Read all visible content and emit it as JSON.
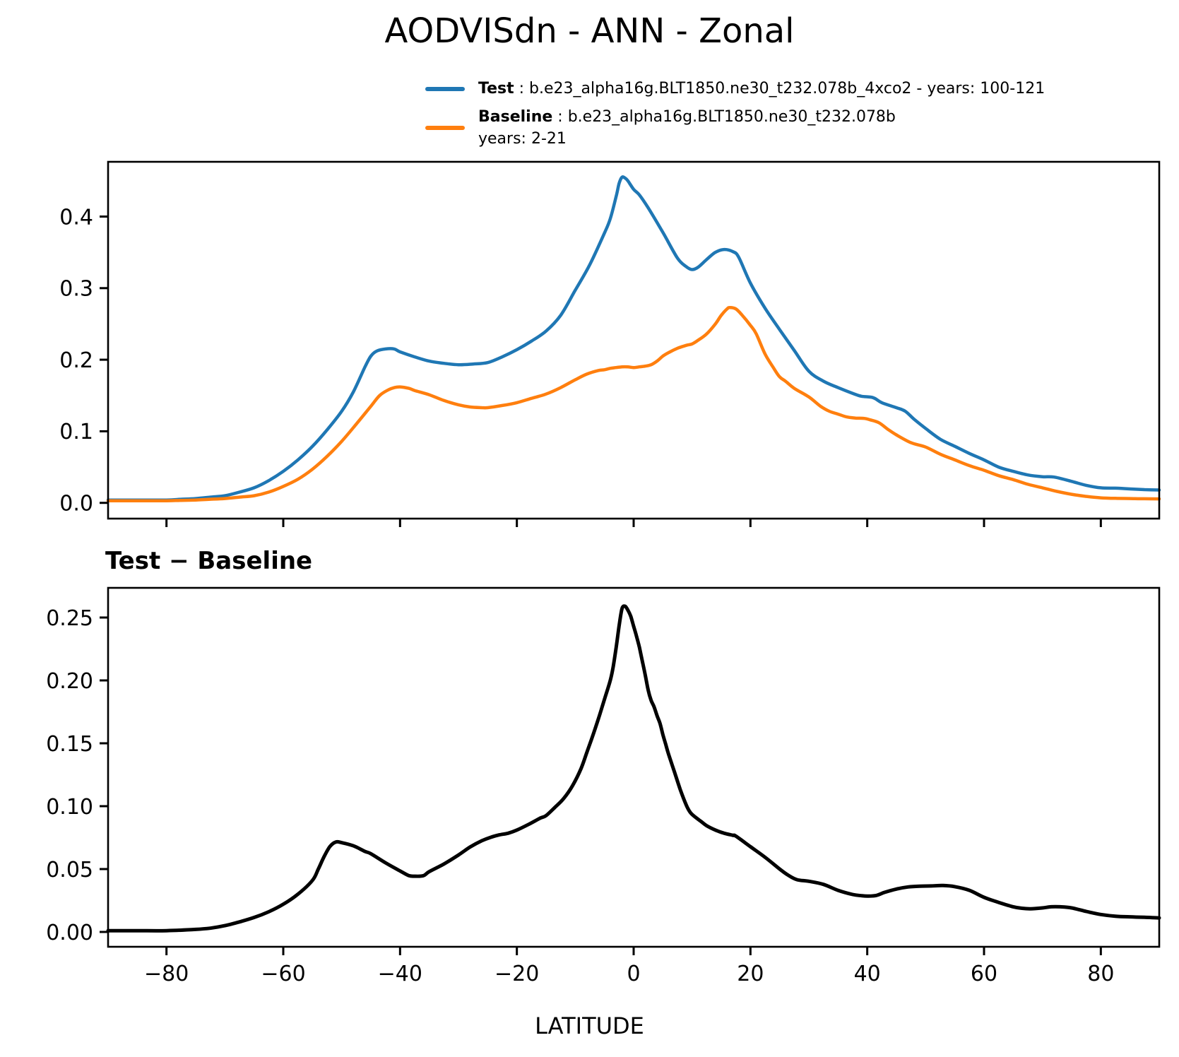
{
  "title": "AODVISdn - ANN - Zonal",
  "xlabel": "LATITUDE",
  "colors": {
    "test": "#1f77b4",
    "baseline": "#ff7f0e",
    "diff": "#000000",
    "axis": "#000000"
  },
  "legend": {
    "entries": [
      {
        "label_bold": "Test",
        "label_rest": " : b.e23_alpha16g.BLT1850.ne30_t232.078b_4xco2 - years: 100-121",
        "color": "#1f77b4"
      },
      {
        "label_bold": "Baseline",
        "label_rest": " : b.e23_alpha16g.BLT1850.ne30_t232.078b",
        "label_line2": "years: 2-21",
        "color": "#ff7f0e"
      }
    ]
  },
  "chart_data": [
    {
      "type": "line",
      "title": "",
      "xlabel": "",
      "ylabel": "",
      "grid": false,
      "legend_position": "above-right, no frame",
      "xlim": [
        -90,
        90
      ],
      "ylim": [
        -0.022,
        0.4765
      ],
      "xticks": [
        -80,
        -60,
        -40,
        -20,
        0,
        20,
        40,
        60,
        80
      ],
      "xtick_labels": [],
      "yticks": [
        0.0,
        0.1,
        0.2,
        0.3,
        0.4
      ],
      "ytick_labels": [
        "0.0",
        "0.1",
        "0.2",
        "0.3",
        "0.4"
      ],
      "series": [
        {
          "name": "Test",
          "color": "#1f77b4",
          "x": [
            -90,
            -85,
            -80,
            -77.5,
            -75,
            -72.5,
            -70,
            -67.5,
            -65,
            -62.5,
            -60,
            -57.5,
            -55,
            -52.5,
            -50,
            -48,
            -46,
            -45,
            -44,
            -42.5,
            -41,
            -40,
            -37.5,
            -35,
            -32.5,
            -30,
            -27.5,
            -25,
            -22.5,
            -20,
            -17.5,
            -15,
            -12.5,
            -10,
            -7.5,
            -5,
            -4,
            -3,
            -2.5,
            -2,
            -1.5,
            -1,
            0,
            1,
            2.5,
            5,
            7.5,
            9,
            10,
            11,
            12.5,
            14,
            15.5,
            17,
            18,
            20,
            22.5,
            25,
            27.5,
            30,
            32.5,
            35,
            37.5,
            39,
            41,
            42.5,
            45,
            46.5,
            48,
            50,
            52.5,
            55,
            57.5,
            60,
            62.5,
            65,
            67.5,
            70,
            72,
            75,
            77.5,
            80,
            82.5,
            85,
            87.5,
            90
          ],
          "values": [
            0.004,
            0.004,
            0.004,
            0.005,
            0.006,
            0.008,
            0.01,
            0.015,
            0.021,
            0.031,
            0.044,
            0.06,
            0.079,
            0.102,
            0.128,
            0.155,
            0.19,
            0.205,
            0.212,
            0.215,
            0.215,
            0.211,
            0.204,
            0.198,
            0.195,
            0.193,
            0.194,
            0.196,
            0.204,
            0.214,
            0.226,
            0.24,
            0.262,
            0.297,
            0.333,
            0.377,
            0.397,
            0.428,
            0.446,
            0.455,
            0.454,
            0.45,
            0.438,
            0.43,
            0.412,
            0.378,
            0.342,
            0.33,
            0.326,
            0.329,
            0.34,
            0.35,
            0.354,
            0.351,
            0.343,
            0.307,
            0.272,
            0.242,
            0.213,
            0.184,
            0.17,
            0.161,
            0.153,
            0.149,
            0.147,
            0.14,
            0.133,
            0.128,
            0.117,
            0.104,
            0.089,
            0.079,
            0.069,
            0.06,
            0.05,
            0.044,
            0.039,
            0.0365,
            0.036,
            0.03,
            0.0245,
            0.021,
            0.0205,
            0.0195,
            0.0185,
            0.018
          ]
        },
        {
          "name": "Baseline",
          "color": "#ff7f0e",
          "x": [
            -90,
            -85,
            -80,
            -77.5,
            -75,
            -72.5,
            -70,
            -67.5,
            -65,
            -62.5,
            -60,
            -57.5,
            -55,
            -52.5,
            -50,
            -47.5,
            -45,
            -43.5,
            -42,
            -41,
            -40,
            -38.5,
            -37.5,
            -35,
            -32.5,
            -30,
            -28,
            -26,
            -25,
            -22.5,
            -20,
            -17.5,
            -15,
            -12.5,
            -10,
            -8,
            -6,
            -5,
            -4,
            -3,
            -2,
            -1,
            0,
            1,
            2,
            3,
            4,
            5,
            6,
            7.5,
            9,
            10,
            11,
            12.5,
            14,
            15,
            16,
            16.5,
            17.5,
            18.5,
            20,
            21,
            22.5,
            24,
            25,
            26,
            27.5,
            30,
            32,
            33.5,
            35,
            36.5,
            38,
            39.5,
            40.5,
            42,
            43.5,
            45,
            47.5,
            50,
            52.5,
            55,
            57.5,
            60,
            62.5,
            65,
            67.5,
            70,
            72.5,
            75,
            77.5,
            80,
            82.5,
            85,
            87.5,
            90
          ],
          "values": [
            0.003,
            0.003,
            0.003,
            0.0035,
            0.004,
            0.005,
            0.006,
            0.008,
            0.01,
            0.015,
            0.023,
            0.033,
            0.047,
            0.065,
            0.086,
            0.11,
            0.135,
            0.15,
            0.158,
            0.161,
            0.162,
            0.16,
            0.157,
            0.151,
            0.143,
            0.137,
            0.134,
            0.133,
            0.133,
            0.136,
            0.14,
            0.146,
            0.152,
            0.161,
            0.172,
            0.18,
            0.185,
            0.186,
            0.188,
            0.189,
            0.19,
            0.19,
            0.189,
            0.19,
            0.191,
            0.193,
            0.198,
            0.205,
            0.21,
            0.216,
            0.22,
            0.222,
            0.227,
            0.236,
            0.25,
            0.262,
            0.271,
            0.273,
            0.271,
            0.263,
            0.248,
            0.236,
            0.208,
            0.188,
            0.176,
            0.17,
            0.16,
            0.148,
            0.135,
            0.128,
            0.124,
            0.12,
            0.1185,
            0.118,
            0.116,
            0.112,
            0.103,
            0.095,
            0.084,
            0.078,
            0.068,
            0.06,
            0.052,
            0.0455,
            0.038,
            0.0325,
            0.026,
            0.021,
            0.016,
            0.012,
            0.009,
            0.007,
            0.0063,
            0.006,
            0.0057,
            0.0055
          ]
        }
      ]
    },
    {
      "type": "line",
      "title": "Test − Baseline",
      "xlabel": "LATITUDE",
      "ylabel": "",
      "grid": false,
      "xlim": [
        -90,
        90
      ],
      "ylim": [
        -0.0118,
        0.2736
      ],
      "xticks": [
        -80,
        -60,
        -40,
        -20,
        0,
        20,
        40,
        60,
        80
      ],
      "xtick_labels": [
        "−80",
        "−60",
        "−40",
        "−20",
        "0",
        "20",
        "40",
        "60",
        "80"
      ],
      "yticks": [
        0.0,
        0.05,
        0.1,
        0.15,
        0.2,
        0.25
      ],
      "ytick_labels": [
        "0.00",
        "0.05",
        "0.10",
        "0.15",
        "0.20",
        "0.25"
      ],
      "series": [
        {
          "name": "Test − Baseline",
          "color": "#000000",
          "x": [
            -90,
            -85,
            -80,
            -75,
            -72.5,
            -70,
            -67.5,
            -65,
            -62.5,
            -60,
            -57.5,
            -55,
            -54,
            -53,
            -52,
            -51,
            -50,
            -48,
            -46,
            -45,
            -42.5,
            -40,
            -38.5,
            -37.5,
            -36,
            -35,
            -32.5,
            -30,
            -28,
            -26,
            -24.5,
            -23,
            -21.5,
            -20,
            -18,
            -16,
            -15,
            -13.5,
            -12,
            -10.5,
            -9,
            -8,
            -7,
            -6,
            -5,
            -4,
            -3.5,
            -3,
            -2.5,
            -2,
            -1.5,
            -1,
            -0.5,
            0,
            0.5,
            1,
            1.5,
            2,
            2.5,
            3,
            3.5,
            4,
            4.5,
            5,
            5.5,
            6,
            7,
            8,
            9,
            9.7,
            10.5,
            11.5,
            12.5,
            14,
            15.5,
            17,
            17.5,
            20,
            22.5,
            25,
            26.5,
            28,
            30,
            32.5,
            35,
            37.5,
            39,
            40,
            41.5,
            43,
            45,
            47,
            49,
            51,
            53,
            55,
            57.5,
            60,
            62.5,
            65,
            66.5,
            68,
            70,
            71.5,
            73,
            75,
            77.5,
            80,
            82.5,
            85,
            87.5,
            90
          ],
          "values": [
            0.001,
            0.001,
            0.001,
            0.002,
            0.003,
            0.005,
            0.008,
            0.0115,
            0.016,
            0.022,
            0.03,
            0.041,
            0.05,
            0.06,
            0.068,
            0.0715,
            0.071,
            0.0685,
            0.064,
            0.0622,
            0.055,
            0.0485,
            0.0448,
            0.0443,
            0.0447,
            0.048,
            0.054,
            0.0612,
            0.0675,
            0.0725,
            0.0752,
            0.0772,
            0.0785,
            0.081,
            0.0855,
            0.0905,
            0.0925,
            0.099,
            0.106,
            0.116,
            0.13,
            0.143,
            0.156,
            0.17,
            0.185,
            0.2,
            0.211,
            0.226,
            0.243,
            0.257,
            0.259,
            0.256,
            0.251,
            0.243,
            0.235,
            0.226,
            0.215,
            0.204,
            0.192,
            0.184,
            0.179,
            0.172,
            0.166,
            0.157,
            0.149,
            0.141,
            0.127,
            0.113,
            0.101,
            0.095,
            0.0915,
            0.088,
            0.0845,
            0.081,
            0.0785,
            0.0768,
            0.0762,
            0.0678,
            0.0594,
            0.05,
            0.045,
            0.0415,
            0.0403,
            0.0378,
            0.0331,
            0.0298,
            0.0288,
            0.0285,
            0.029,
            0.0315,
            0.0341,
            0.0358,
            0.0364,
            0.0366,
            0.0369,
            0.036,
            0.0331,
            0.0275,
            0.0235,
            0.02,
            0.0188,
            0.0184,
            0.0191,
            0.02,
            0.02,
            0.0191,
            0.0163,
            0.0139,
            0.0125,
            0.012,
            0.0116,
            0.0112
          ]
        }
      ]
    }
  ]
}
